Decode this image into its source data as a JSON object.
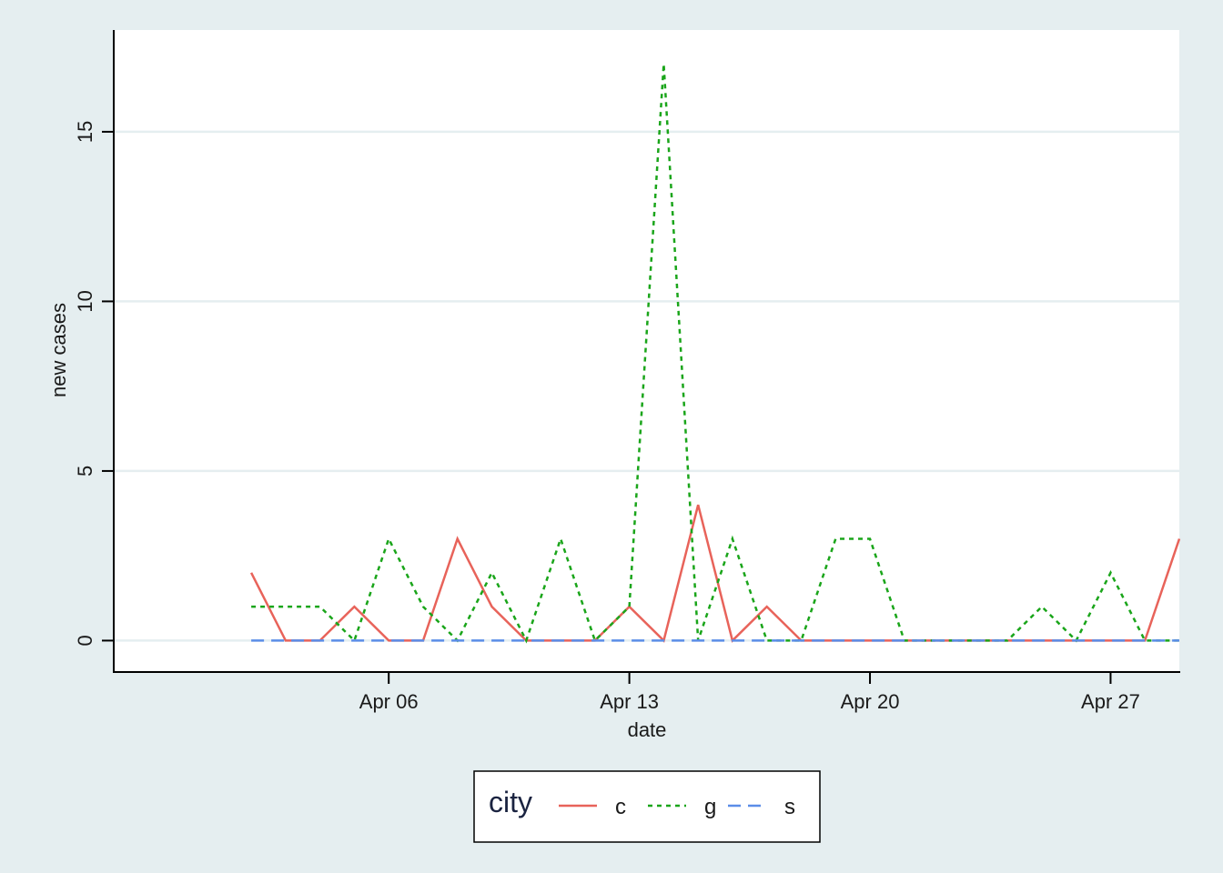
{
  "chart_data": {
    "type": "line",
    "xlabel": "date",
    "ylabel": "new cases",
    "x_tick_labels": [
      "Apr 06",
      "Apr 13",
      "Apr 20",
      "Apr 27"
    ],
    "x_tick_dates": [
      "2020-04-06",
      "2020-04-13",
      "2020-04-20",
      "2020-04-27"
    ],
    "y_ticks": [
      0,
      5,
      10,
      15
    ],
    "x": [
      "2020-04-02",
      "2020-04-03",
      "2020-04-04",
      "2020-04-05",
      "2020-04-06",
      "2020-04-07",
      "2020-04-08",
      "2020-04-09",
      "2020-04-10",
      "2020-04-11",
      "2020-04-12",
      "2020-04-13",
      "2020-04-14",
      "2020-04-15",
      "2020-04-16",
      "2020-04-17",
      "2020-04-18",
      "2020-04-19",
      "2020-04-20",
      "2020-04-21",
      "2020-04-22",
      "2020-04-23",
      "2020-04-24",
      "2020-04-25",
      "2020-04-26",
      "2020-04-27",
      "2020-04-28",
      "2020-04-29"
    ],
    "xlim": [
      "2020-03-29",
      "2020-04-29"
    ],
    "ylim": [
      -0.9,
      18
    ],
    "grid": true,
    "legend": {
      "title": "city",
      "position": "bottom"
    },
    "series": [
      {
        "name": "c",
        "color": "#e8635a",
        "dash": "solid",
        "values": [
          2,
          0,
          0,
          1,
          0,
          0,
          3,
          1,
          0,
          0,
          0,
          1,
          0,
          4,
          0,
          1,
          0,
          0,
          0,
          0,
          0,
          0,
          0,
          0,
          0,
          0,
          0,
          3
        ]
      },
      {
        "name": "g",
        "color": "#1aa51a",
        "dash": "dotted",
        "values": [
          1,
          1,
          1,
          0,
          3,
          1,
          0,
          2,
          0,
          3,
          0,
          1,
          17,
          0,
          3,
          0,
          0,
          3,
          3,
          0,
          0,
          0,
          0,
          1,
          0,
          2,
          0,
          0
        ]
      },
      {
        "name": "s",
        "color": "#5b8de8",
        "dash": "dashed",
        "values": [
          0,
          0,
          0,
          0,
          0,
          0,
          0,
          0,
          0,
          0,
          0,
          0,
          0,
          0,
          0,
          0,
          0,
          0,
          0,
          0,
          0,
          0,
          0,
          0,
          0,
          0,
          0,
          0
        ]
      }
    ]
  }
}
